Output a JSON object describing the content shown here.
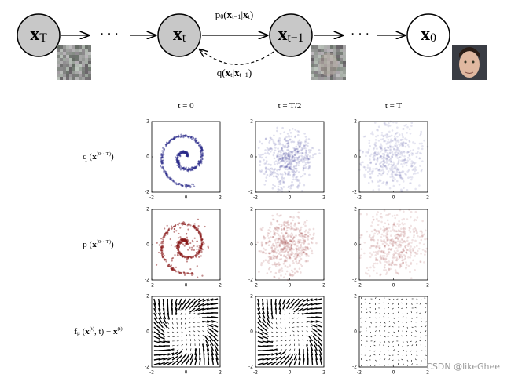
{
  "nodes": [
    [
      {
        "t": "x",
        "s": "b"
      },
      {
        "t": "T",
        "s": "sub"
      }
    ],
    [
      {
        "t": "x",
        "s": "b"
      },
      {
        "t": "t",
        "s": "sub"
      }
    ],
    [
      {
        "t": "x",
        "s": "b"
      },
      {
        "t": "t−1",
        "s": "sub"
      }
    ],
    [
      {
        "t": "x",
        "s": "b"
      },
      {
        "t": "0",
        "s": "sub"
      }
    ]
  ],
  "ellipsis": "· · ·",
  "reverse_label": [
    {
      "t": "p"
    },
    {
      "t": "θ",
      "s": "sub"
    },
    {
      "t": "("
    },
    {
      "t": "x",
      "s": "b"
    },
    {
      "t": "t−1",
      "s": "sub"
    },
    {
      "t": "|"
    },
    {
      "t": "x",
      "s": "b"
    },
    {
      "t": "t",
      "s": "sub"
    },
    {
      "t": ")"
    }
  ],
  "forward_label": [
    {
      "t": "q("
    },
    {
      "t": "x",
      "s": "b"
    },
    {
      "t": "t",
      "s": "sub"
    },
    {
      "t": "|"
    },
    {
      "t": "x",
      "s": "b"
    },
    {
      "t": "t−1",
      "s": "sub"
    },
    {
      "t": ")"
    }
  ],
  "columns": [
    [
      {
        "t": "t = 0"
      }
    ],
    [
      {
        "t": "t = "
      },
      {
        "t": "T/2"
      }
    ],
    [
      {
        "t": "t = T"
      }
    ]
  ],
  "rows": [
    [
      {
        "t": "q ("
      },
      {
        "t": "x",
        "s": "b"
      },
      {
        "t": "(0···T)",
        "s": "sup"
      },
      {
        "t": ")"
      }
    ],
    [
      {
        "t": "p ("
      },
      {
        "t": "x",
        "s": "b"
      },
      {
        "t": "(0···T)",
        "s": "sup"
      },
      {
        "t": ")"
      }
    ],
    [
      {
        "t": "f",
        "s": "b"
      },
      {
        "t": "μ",
        "s": "sub"
      },
      {
        "t": " ("
      },
      {
        "t": "x",
        "s": "b"
      },
      {
        "t": "(t)",
        "s": "sup"
      },
      {
        "t": ", t) − "
      },
      {
        "t": "x",
        "s": "b"
      },
      {
        "t": "(t)",
        "s": "sup"
      }
    ]
  ],
  "axis_ticks": [
    -2,
    0,
    2
  ],
  "watermark": "CSDN @likeGhee"
}
